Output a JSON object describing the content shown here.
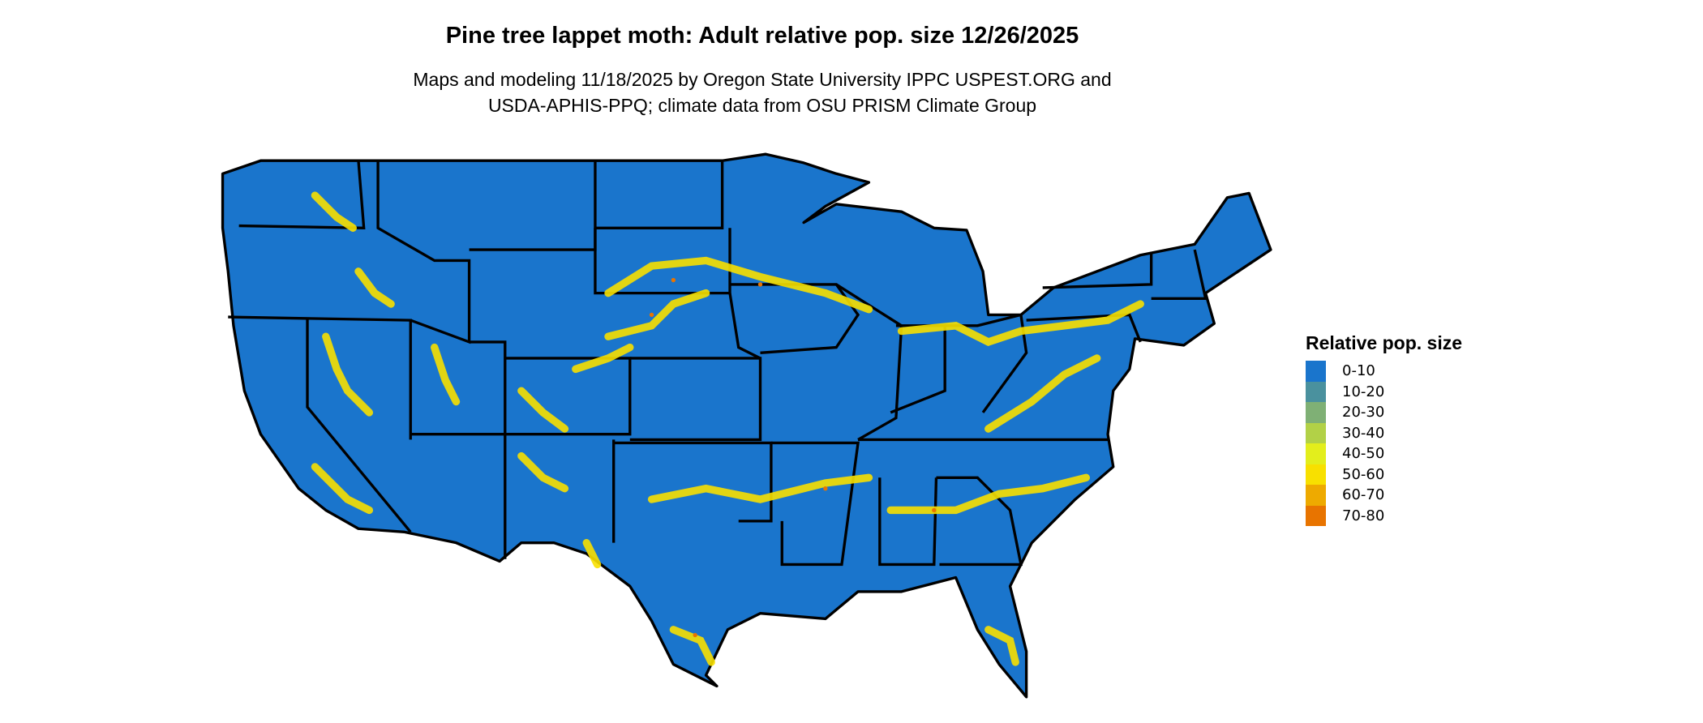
{
  "title": "Pine tree lappet moth: Adult relative pop. size 12/26/2025",
  "subtitle_line1": "Maps and modeling 11/18/2025 by Oregon State University IPPC USPEST.ORG and",
  "subtitle_line2": "USDA-APHIS-PPQ; climate data from OSU PRISM Climate Group",
  "legend": {
    "title": "Relative pop. size",
    "items": [
      {
        "label": "0-10",
        "color": "#1a75cc"
      },
      {
        "label": "10-20",
        "color": "#4a919e"
      },
      {
        "label": "20-30",
        "color": "#7fb075"
      },
      {
        "label": "30-40",
        "color": "#b2d147"
      },
      {
        "label": "40-50",
        "color": "#e3ee1c"
      },
      {
        "label": "50-60",
        "color": "#f8e000"
      },
      {
        "label": "60-70",
        "color": "#eeaa00"
      },
      {
        "label": "70-80",
        "color": "#e87400"
      }
    ]
  }
}
